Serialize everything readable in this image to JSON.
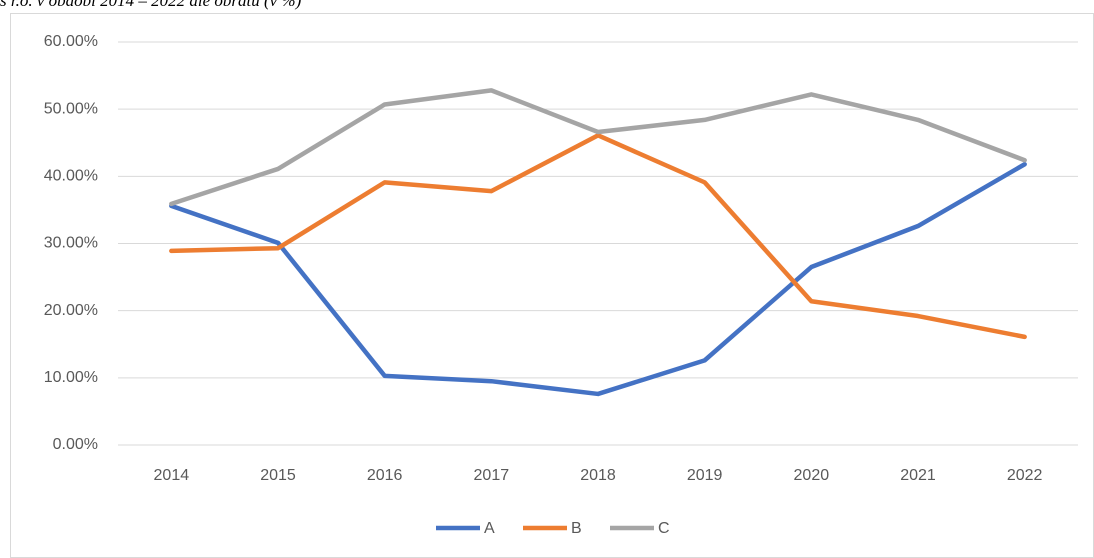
{
  "chart_data": {
    "type": "line",
    "title": "s r.o. v období 2014 – 2022 dle obratu (v %)",
    "categories": [
      "2014",
      "2015",
      "2016",
      "2017",
      "2018",
      "2019",
      "2020",
      "2021",
      "2022"
    ],
    "series": [
      {
        "name": "A",
        "color": "#4472c4",
        "values": [
          35.6,
          30.1,
          10.3,
          9.5,
          7.6,
          12.6,
          26.5,
          32.6,
          41.8
        ]
      },
      {
        "name": "B",
        "color": "#ed7d31",
        "values": [
          28.9,
          29.3,
          39.1,
          37.8,
          46.1,
          39.1,
          21.4,
          19.2,
          16.1
        ]
      },
      {
        "name": "C",
        "color": "#a5a5a5",
        "values": [
          35.9,
          41.1,
          50.7,
          52.8,
          46.6,
          48.4,
          52.2,
          48.4,
          42.4
        ]
      }
    ],
    "ylim": [
      0,
      60
    ],
    "yticks": [
      {
        "value": 0,
        "label": "0.00%"
      },
      {
        "value": 10,
        "label": "10.00%"
      },
      {
        "value": 20,
        "label": "20.00%"
      },
      {
        "value": 30,
        "label": "30.00%"
      },
      {
        "value": 40,
        "label": "40.00%"
      },
      {
        "value": 50,
        "label": "50.00%"
      },
      {
        "value": 60,
        "label": "60.00%"
      }
    ],
    "grid": true,
    "legend": "bottom"
  }
}
